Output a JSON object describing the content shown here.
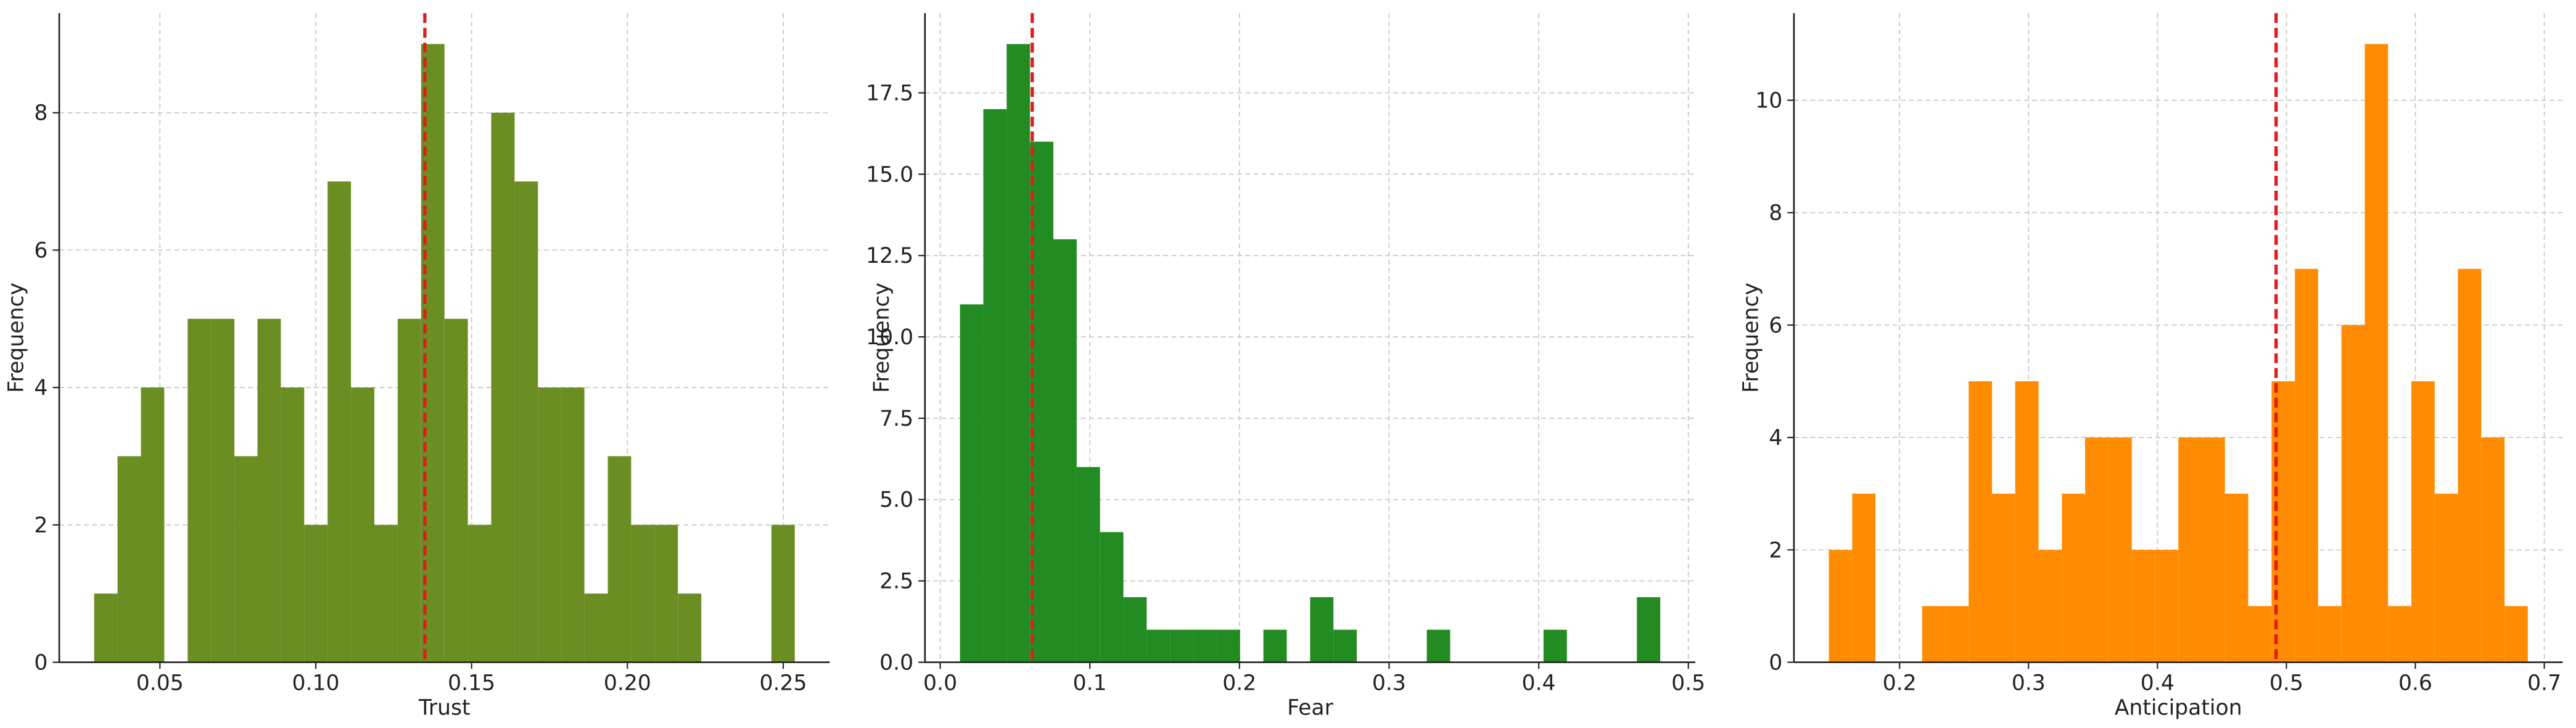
{
  "chart_data": [
    {
      "type": "histogram",
      "xlabel": "Trust",
      "ylabel": "Frequency",
      "color": "#6b8e23",
      "bins": [
        0.0289,
        0.0364,
        0.0439,
        0.0514,
        0.0589,
        0.0664,
        0.0739,
        0.0813,
        0.0888,
        0.0963,
        0.1038,
        0.1113,
        0.1188,
        0.1263,
        0.1338,
        0.1413,
        0.1488,
        0.1563,
        0.1638,
        0.1713,
        0.1788,
        0.1862,
        0.1937,
        0.2012,
        0.2087,
        0.2162,
        0.2237,
        0.2312,
        0.2387,
        0.2462,
        0.2537
      ],
      "counts": [
        1,
        3,
        4,
        0,
        5,
        5,
        3,
        5,
        4,
        2,
        7,
        4,
        2,
        5,
        9,
        5,
        2,
        8,
        7,
        4,
        4,
        1,
        3,
        2,
        2,
        1,
        0,
        0,
        0,
        2
      ],
      "mean": 0.135,
      "mean_color": "#e31a1c",
      "xlim": [
        0.0177,
        0.2649
      ],
      "xticks": [
        0.05,
        {
          "value": 0.1,
          "label": "0.10"
        },
        0.15,
        {
          "value": 0.2,
          "label": "0.20"
        },
        0.25
      ],
      "ylim": [
        0,
        9.45
      ],
      "yticks": [
        0,
        2,
        4,
        6,
        8
      ],
      "grid": true
    },
    {
      "type": "histogram",
      "xlabel": "Fear",
      "ylabel": "Frequency",
      "color": "#228b22",
      "bins": [
        0.0132,
        0.0288,
        0.0444,
        0.06,
        0.0756,
        0.0912,
        0.1068,
        0.1224,
        0.138,
        0.1536,
        0.1692,
        0.1848,
        0.2004,
        0.216,
        0.2316,
        0.2472,
        0.2628,
        0.2784,
        0.294,
        0.3096,
        0.3252,
        0.3408,
        0.3564,
        0.372,
        0.3876,
        0.4032,
        0.4188,
        0.4344,
        0.45,
        0.4656,
        0.4812
      ],
      "counts": [
        11,
        17,
        19,
        16,
        13,
        6,
        4,
        2,
        1,
        1,
        1,
        1,
        0,
        1,
        0,
        2,
        1,
        0,
        0,
        0,
        1,
        0,
        0,
        0,
        0,
        1,
        0,
        0,
        0,
        2
      ],
      "mean": 0.0615,
      "mean_color": "#e31a1c",
      "xlim": [
        -0.0102,
        0.5047
      ],
      "xticks": [
        {
          "value": 0,
          "label": "0.0"
        },
        0.1,
        0.2,
        0.3,
        0.4,
        0.5
      ],
      "ylim": [
        0,
        19.95
      ],
      "yticks": [
        {
          "value": 0,
          "label": "0.0"
        },
        2.5,
        {
          "value": 5,
          "label": "5.0"
        },
        7.5,
        {
          "value": 10,
          "label": "10.0"
        },
        12.5,
        {
          "value": 15,
          "label": "15.0"
        },
        17.5
      ],
      "grid": true
    },
    {
      "type": "histogram",
      "xlabel": "Anticipation",
      "ylabel": "Frequency",
      "color": "#ff8c00",
      "bins": [
        0.1452,
        0.1633,
        0.1813,
        0.1994,
        0.2175,
        0.2355,
        0.2536,
        0.2717,
        0.2897,
        0.3078,
        0.3259,
        0.3439,
        0.362,
        0.3801,
        0.3981,
        0.4162,
        0.4343,
        0.4523,
        0.4704,
        0.4885,
        0.5066,
        0.5246,
        0.5427,
        0.5608,
        0.5788,
        0.5969,
        0.615,
        0.633,
        0.6511,
        0.6692,
        0.6872
      ],
      "counts": [
        2,
        3,
        0,
        0,
        1,
        1,
        5,
        3,
        5,
        2,
        3,
        4,
        4,
        2,
        2,
        4,
        4,
        3,
        1,
        5,
        7,
        1,
        6,
        11,
        1,
        5,
        3,
        7,
        4,
        1
      ],
      "mean": 0.492,
      "mean_color": "#e31a1c",
      "xlim": [
        0.1181,
        0.7143
      ],
      "xticks": [
        0.2,
        0.3,
        0.4,
        0.5,
        0.6,
        0.7
      ],
      "ylim": [
        0,
        11.55
      ],
      "yticks": [
        0,
        2,
        4,
        6,
        8,
        10
      ],
      "grid": true
    }
  ]
}
